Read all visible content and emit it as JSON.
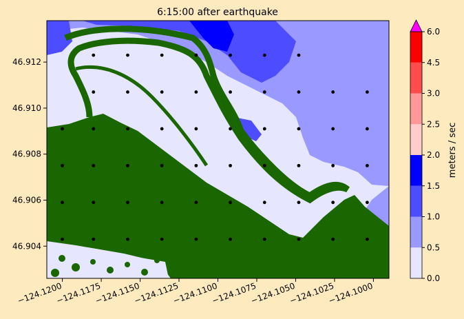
{
  "chart_data": {
    "type": "heatmap",
    "title": "6:15:00 after earthquake",
    "xlim": [
      -124.121,
      -124.099
    ],
    "ylim": [
      46.9026,
      46.9138
    ],
    "x_ticks": [
      -124.12,
      -124.1175,
      -124.115,
      -124.1125,
      -124.11,
      -124.1075,
      -124.105,
      -124.1025,
      -124.1
    ],
    "x_tick_labels": [
      "−124.1200",
      "−124.1175",
      "−124.1150",
      "−124.1125",
      "−124.1100",
      "−124.1075",
      "−124.1050",
      "−124.1025",
      "−124.1000"
    ],
    "y_ticks": [
      46.904,
      46.906,
      46.908,
      46.91,
      46.912
    ],
    "y_tick_labels": [
      "46.904",
      "46.906",
      "46.908",
      "46.910",
      "46.912"
    ],
    "colorbar": {
      "label": "meters / sec",
      "levels": [
        0.0,
        0.5,
        1.0,
        1.5,
        2.0,
        2.5,
        3.0,
        4.5,
        6.0
      ],
      "tick_labels": [
        "0.0",
        "0.5",
        "1.0",
        "1.5",
        "2.0",
        "2.5",
        "3.0",
        "4.5",
        "6.0"
      ],
      "colors": [
        "#e6e6ff",
        "#9999ff",
        "#4d4dff",
        "#0000ff",
        "#ffcccc",
        "#ff9999",
        "#ff4d4d",
        "#ff0000"
      ],
      "extend_max_color": "#ff00ff"
    },
    "land_color": "#1a6600",
    "marker_color": "#000000",
    "marker_points": [
      [
        -124.12,
        46.9043
      ],
      [
        -124.12,
        46.9059
      ],
      [
        -124.12,
        46.9075
      ],
      [
        -124.12,
        46.9091
      ],
      [
        -124.118,
        46.9043
      ],
      [
        -124.118,
        46.9059
      ],
      [
        -124.118,
        46.9075
      ],
      [
        -124.118,
        46.9091
      ],
      [
        -124.118,
        46.9107
      ],
      [
        -124.118,
        46.9123
      ],
      [
        -124.1158,
        46.9043
      ],
      [
        -124.1158,
        46.9059
      ],
      [
        -124.1158,
        46.9075
      ],
      [
        -124.1158,
        46.9091
      ],
      [
        -124.1158,
        46.9107
      ],
      [
        -124.1158,
        46.9123
      ],
      [
        -124.1136,
        46.9043
      ],
      [
        -124.1136,
        46.9059
      ],
      [
        -124.1136,
        46.9075
      ],
      [
        -124.1136,
        46.9091
      ],
      [
        -124.1136,
        46.9107
      ],
      [
        -124.1136,
        46.9123
      ],
      [
        -124.1114,
        46.9043
      ],
      [
        -124.1114,
        46.9059
      ],
      [
        -124.1114,
        46.9075
      ],
      [
        -124.1114,
        46.9091
      ],
      [
        -124.1114,
        46.9107
      ],
      [
        -124.1114,
        46.9123
      ],
      [
        -124.1092,
        46.9043
      ],
      [
        -124.1092,
        46.9059
      ],
      [
        -124.1092,
        46.9075
      ],
      [
        -124.1092,
        46.9091
      ],
      [
        -124.1092,
        46.9107
      ],
      [
        -124.1092,
        46.9123
      ],
      [
        -124.107,
        46.9043
      ],
      [
        -124.107,
        46.9059
      ],
      [
        -124.107,
        46.9075
      ],
      [
        -124.107,
        46.9091
      ],
      [
        -124.107,
        46.9107
      ],
      [
        -124.107,
        46.9123
      ],
      [
        -124.1048,
        46.9043
      ],
      [
        -124.1048,
        46.9059
      ],
      [
        -124.1048,
        46.9075
      ],
      [
        -124.1048,
        46.9091
      ],
      [
        -124.1048,
        46.9107
      ],
      [
        -124.1048,
        46.9123
      ],
      [
        -124.1026,
        46.9043
      ],
      [
        -124.1026,
        46.9059
      ],
      [
        -124.1026,
        46.9075
      ],
      [
        -124.1026,
        46.9091
      ],
      [
        -124.1026,
        46.9107
      ],
      [
        -124.1004,
        46.9043
      ],
      [
        -124.1004,
        46.9059
      ],
      [
        -124.1004,
        46.9075
      ],
      [
        -124.1004,
        46.9091
      ],
      [
        -124.1004,
        46.9107
      ]
    ]
  }
}
